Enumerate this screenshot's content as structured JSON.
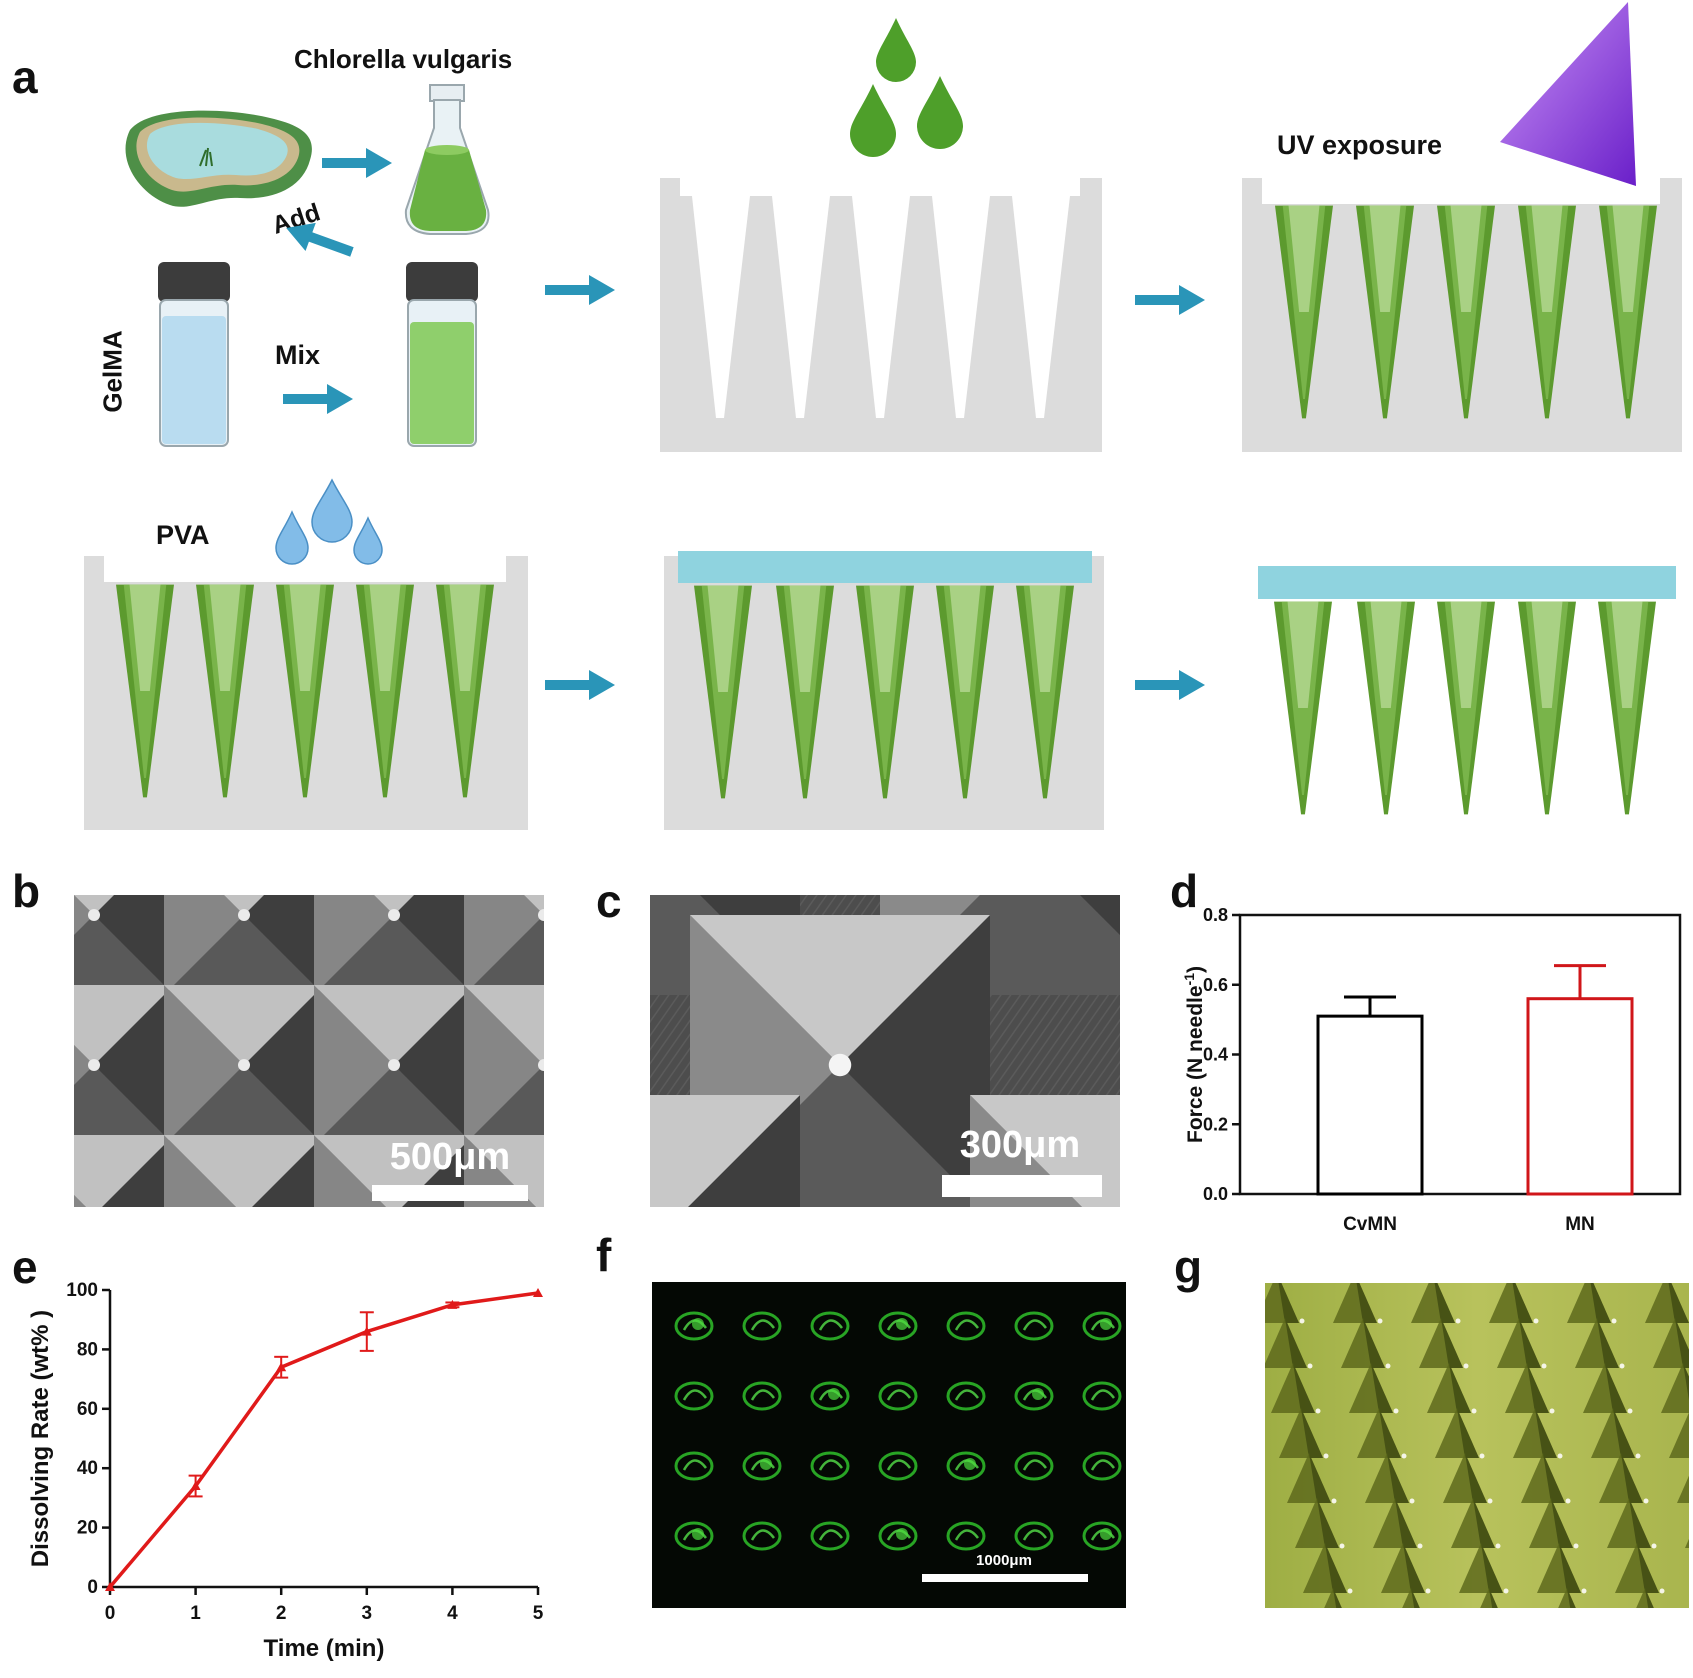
{
  "panels": {
    "a": {
      "label": "a",
      "texts": {
        "chlorella": "Chlorella vulgaris",
        "add": "Add",
        "gelma": "GelMA",
        "mix": "Mix",
        "uv": "UV exposure",
        "pva": "PVA"
      }
    },
    "b": {
      "label": "b",
      "scale_bar": "500μm"
    },
    "c": {
      "label": "c",
      "scale_bar": "300μm"
    },
    "d": {
      "label": "d"
    },
    "e": {
      "label": "e"
    },
    "f": {
      "label": "f",
      "scale_bar": "1000μm"
    },
    "g": {
      "label": "g"
    }
  },
  "chart_data": [
    {
      "panel": "d",
      "type": "bar",
      "categories": [
        "CvMN",
        "MN"
      ],
      "values": [
        0.51,
        0.56
      ],
      "errors": [
        0.055,
        0.095
      ],
      "bar_colors": [
        "#000000",
        "#d0161a"
      ],
      "ylabel": "Force (N needle",
      "ylabel_superscript": "-1",
      "ylabel_suffix": ")",
      "ylim": [
        0.0,
        0.8
      ],
      "yticks": [
        "0.0",
        "0.2",
        "0.4",
        "0.6",
        "0.8"
      ]
    },
    {
      "panel": "e",
      "type": "line",
      "x": [
        0,
        1,
        2,
        3,
        4,
        5
      ],
      "values": [
        0,
        34,
        74,
        86,
        95,
        99
      ],
      "errors": [
        0,
        3.5,
        3.5,
        6.5,
        0.8,
        0.5
      ],
      "color": "#e01a1a",
      "xlabel": "Time (min)",
      "ylabel": "Dissolving Rate (wt% )",
      "xlim": [
        0,
        5
      ],
      "ylim": [
        0,
        100
      ],
      "xticks": [
        "0",
        "1",
        "2",
        "3",
        "4",
        "5"
      ],
      "yticks": [
        "0",
        "20",
        "40",
        "60",
        "80",
        "100"
      ]
    }
  ]
}
